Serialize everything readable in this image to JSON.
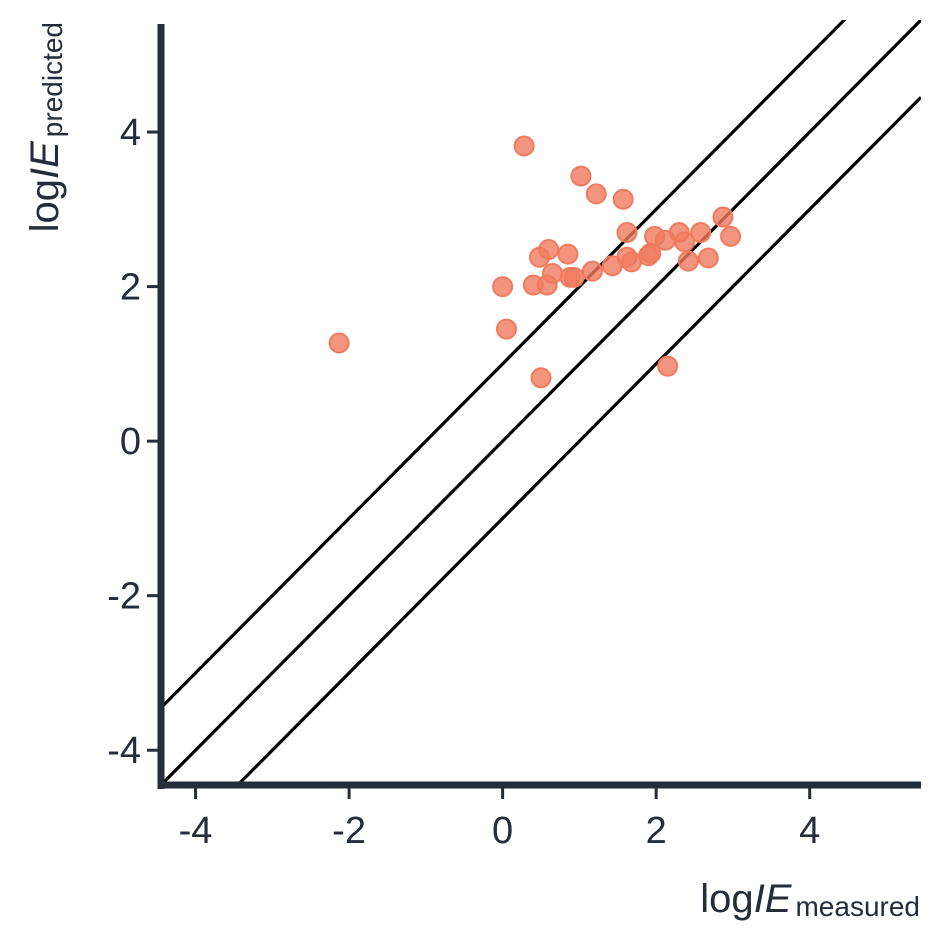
{
  "chart_data": {
    "type": "scatter",
    "title": "",
    "xlabel": {
      "prefix": "log",
      "italic": "IE",
      "subscript": "measured"
    },
    "ylabel": {
      "prefix": "log",
      "italic": "IE",
      "subscript": "predicted"
    },
    "xlim": [
      -4.45,
      5.45
    ],
    "ylim": [
      -4.45,
      5.45
    ],
    "x_ticks": [
      -4,
      -2,
      0,
      2,
      4
    ],
    "y_ticks": [
      -4,
      -2,
      0,
      2,
      4
    ],
    "x_tick_labels": [
      "-4",
      "-2",
      "0",
      "2",
      "4"
    ],
    "y_tick_labels": [
      "-4",
      "-2",
      "0",
      "2",
      "4"
    ],
    "grid": false,
    "reference_lines": [
      {
        "intercept": 1
      },
      {
        "intercept": 0
      },
      {
        "intercept": -1
      }
    ],
    "point_color": "#f07a5e",
    "line_color": "#000000",
    "axis_color": "#252d3a",
    "points": [
      {
        "x": -2.13,
        "y": 1.27
      },
      {
        "x": 0.05,
        "y": 1.45
      },
      {
        "x": 0.0,
        "y": 2.0
      },
      {
        "x": 0.28,
        "y": 3.82
      },
      {
        "x": 0.4,
        "y": 2.02
      },
      {
        "x": 0.48,
        "y": 2.38
      },
      {
        "x": 0.5,
        "y": 0.82
      },
      {
        "x": 0.58,
        "y": 2.02
      },
      {
        "x": 0.6,
        "y": 2.48
      },
      {
        "x": 0.65,
        "y": 2.17
      },
      {
        "x": 0.85,
        "y": 2.42
      },
      {
        "x": 0.88,
        "y": 2.12
      },
      {
        "x": 0.93,
        "y": 2.12
      },
      {
        "x": 1.02,
        "y": 3.43
      },
      {
        "x": 1.17,
        "y": 2.2
      },
      {
        "x": 1.22,
        "y": 3.2
      },
      {
        "x": 1.43,
        "y": 2.27
      },
      {
        "x": 1.57,
        "y": 3.13
      },
      {
        "x": 1.62,
        "y": 2.7
      },
      {
        "x": 1.62,
        "y": 2.38
      },
      {
        "x": 1.68,
        "y": 2.32
      },
      {
        "x": 1.9,
        "y": 2.4
      },
      {
        "x": 1.93,
        "y": 2.43
      },
      {
        "x": 1.98,
        "y": 2.65
      },
      {
        "x": 2.12,
        "y": 2.6
      },
      {
        "x": 2.15,
        "y": 0.97
      },
      {
        "x": 2.3,
        "y": 2.7
      },
      {
        "x": 2.37,
        "y": 2.58
      },
      {
        "x": 2.42,
        "y": 2.33
      },
      {
        "x": 2.58,
        "y": 2.7
      },
      {
        "x": 2.68,
        "y": 2.37
      },
      {
        "x": 2.87,
        "y": 2.9
      },
      {
        "x": 2.97,
        "y": 2.65
      }
    ]
  }
}
